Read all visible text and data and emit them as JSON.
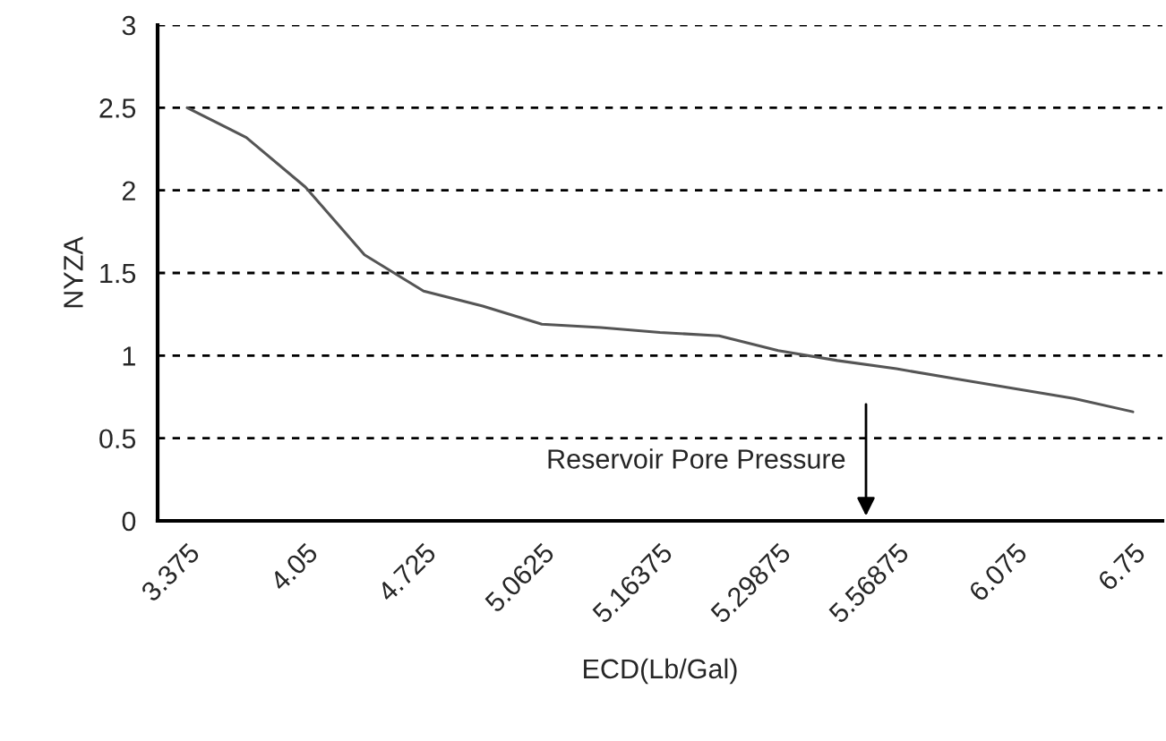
{
  "chart_data": {
    "type": "line",
    "xlabel": "ECD(Lb/Gal)",
    "ylabel": "NYZA",
    "categories": [
      "3.375",
      null,
      "4.05",
      null,
      "4.725",
      null,
      "5.0625",
      null,
      "5.16375",
      null,
      "5.29875",
      null,
      "5.56875",
      null,
      "6.075",
      null,
      "6.75"
    ],
    "series": [
      {
        "color": "#555555",
        "values": [
          2.5,
          2.32,
          2.02,
          1.61,
          1.39,
          1.3,
          1.19,
          1.17,
          1.14,
          1.12,
          1.03,
          0.97,
          0.92,
          0.86,
          0.8,
          0.74,
          0.66
        ]
      }
    ],
    "ylim": [
      0,
      3
    ],
    "yticks": [
      0,
      0.5,
      1,
      1.5,
      2,
      2.5,
      3
    ],
    "grid": "y",
    "marker": "none",
    "line_style": "solid",
    "legend": false,
    "annotations": [
      "Reservoir Pore Pressure"
    ]
  }
}
